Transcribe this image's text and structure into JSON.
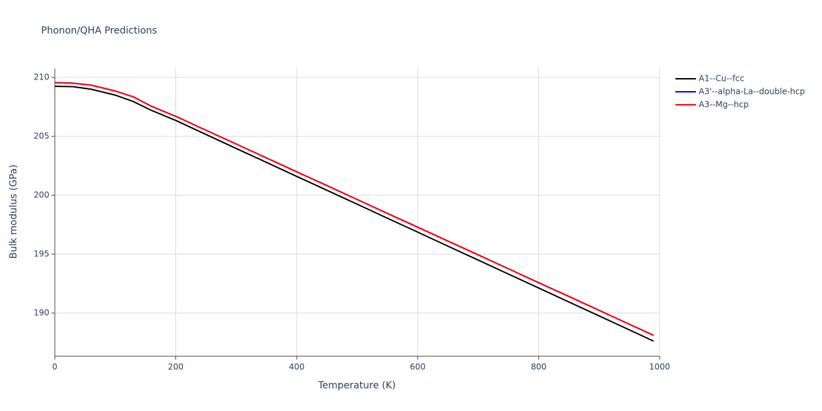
{
  "chart_data": {
    "type": "line",
    "title": "Phonon/QHA Predictions",
    "x_label": "Temperature (K)",
    "y_label": "Bulk modulus (GPa)",
    "x": [
      0,
      30,
      60,
      100,
      130,
      160,
      200,
      250,
      300,
      350,
      400,
      450,
      500,
      550,
      600,
      650,
      700,
      750,
      800,
      850,
      900,
      950,
      990
    ],
    "series": [
      {
        "name": "A1--Cu--fcc",
        "color": "#000000",
        "values": [
          209.25,
          209.22,
          209.0,
          208.5,
          207.95,
          207.2,
          206.35,
          205.16,
          203.97,
          202.79,
          201.6,
          200.42,
          199.24,
          198.05,
          196.87,
          195.68,
          194.5,
          193.31,
          192.13,
          190.94,
          189.76,
          188.57,
          187.62
        ]
      },
      {
        "name": "A3'--alpha-La--double-hcp",
        "color": "#0000ff",
        "values": [
          209.55,
          209.52,
          209.35,
          208.85,
          208.35,
          207.55,
          206.7,
          205.52,
          204.35,
          203.17,
          201.99,
          200.82,
          199.64,
          198.46,
          197.29,
          196.11,
          194.94,
          193.76,
          192.58,
          191.41,
          190.23,
          189.05,
          188.11
        ]
      },
      {
        "name": "A3--Mg--hcp",
        "color": "#ff0000",
        "values": [
          209.55,
          209.52,
          209.35,
          208.85,
          208.35,
          207.55,
          206.7,
          205.52,
          204.35,
          203.17,
          201.99,
          200.82,
          199.64,
          198.46,
          197.29,
          196.11,
          194.94,
          193.76,
          192.58,
          191.41,
          190.23,
          189.05,
          188.11
        ]
      }
    ],
    "xlim": [
      0,
      1000
    ],
    "xticks": [
      0,
      200,
      400,
      600,
      800,
      1000
    ],
    "ylim": [
      186.34,
      210.76
    ],
    "yticks": [
      190,
      195,
      200,
      205,
      210
    ],
    "grid": true,
    "legend": "right"
  }
}
